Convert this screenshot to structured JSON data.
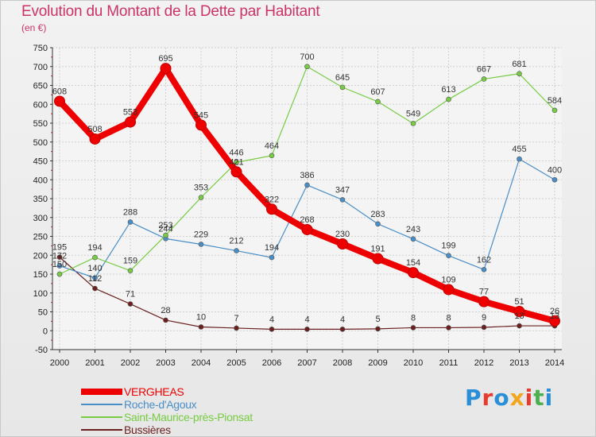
{
  "header": {
    "title": "Evolution du Montant de la Dette par Habitant",
    "unit": "(en €)"
  },
  "logo": {
    "text": "Proxiti",
    "colors": [
      "#2a8fd6",
      "#e63b2e",
      "#2a8fd6",
      "#f2a51e",
      "#e63b2e",
      "#4caf50",
      "#2a8fd6"
    ]
  },
  "chart_data": {
    "type": "line",
    "title": "Evolution du Montant de la Dette par Habitant",
    "ylabel": "(en €)",
    "xlabel": "",
    "x": [
      "2000",
      "2001",
      "2002",
      "2003",
      "2004",
      "2005",
      "2006",
      "2007",
      "2008",
      "2009",
      "2010",
      "2011",
      "2012",
      "2013",
      "2014"
    ],
    "ylim": [
      -50,
      750
    ],
    "yticks": [
      -50,
      0,
      50,
      100,
      150,
      200,
      250,
      300,
      350,
      400,
      450,
      500,
      550,
      600,
      650,
      700,
      750
    ],
    "grid": true,
    "legend_position": "bottom-left",
    "series": [
      {
        "name": "VERGHEAS",
        "color": "#ee0000",
        "values": [
          608,
          508,
          553,
          695,
          545,
          421,
          322,
          268,
          230,
          191,
          154,
          109,
          77,
          51,
          26
        ]
      },
      {
        "name": "Roche-d'Agoux",
        "color": "#4a8ec8",
        "values": [
          172,
          140,
          288,
          244,
          229,
          212,
          194,
          386,
          347,
          283,
          243,
          199,
          162,
          455,
          400
        ]
      },
      {
        "name": "Saint-Maurice-près-Pionsat",
        "color": "#77cc44",
        "values": [
          150,
          194,
          159,
          253,
          353,
          446,
          464,
          700,
          645,
          607,
          549,
          613,
          667,
          681,
          584
        ]
      },
      {
        "name": "Bussières",
        "color": "#6b1f1f",
        "values": [
          195,
          112,
          71,
          28,
          10,
          7,
          4,
          4,
          4,
          5,
          8,
          8,
          9,
          13,
          13
        ]
      }
    ],
    "point_labels": [
      [
        "608",
        "508",
        "553",
        "695",
        "545",
        "421",
        "322",
        "268",
        "230",
        "191",
        "154",
        "109",
        "77",
        "51",
        "26"
      ],
      [
        "172",
        "140",
        "288",
        "244",
        "229",
        "212",
        "194",
        "386",
        "347",
        "283",
        "243",
        "199",
        "162",
        "455",
        "400"
      ],
      [
        "150",
        "194",
        "159",
        "253",
        "353",
        "446",
        "464",
        "700",
        "645",
        "607",
        "549",
        "613",
        "667",
        "681",
        "584"
      ],
      [
        "195",
        "112",
        "71",
        "28",
        "10",
        "7",
        "4",
        "4",
        "4",
        "5",
        "8",
        "8",
        "9",
        "13",
        "13"
      ]
    ]
  }
}
